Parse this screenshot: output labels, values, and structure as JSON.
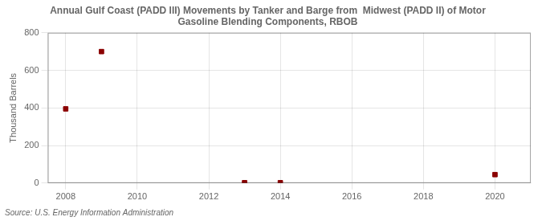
{
  "chart_data": {
    "type": "scatter",
    "title": "Annual Gulf Coast (PADD III) Movements by Tanker and Barge from  Midwest (PADD II) of Motor\nGasoline Blending Components, RBOB",
    "ylabel": "Thousand Barrels",
    "annotation": "Source: U.S. Energy Information Administration",
    "x": [
      2008,
      2009,
      2013,
      2014,
      2020
    ],
    "values": [
      395,
      700,
      2,
      2,
      45
    ],
    "color": "#8b0000",
    "marker": "square",
    "xlim": [
      2007.5,
      2021.0
    ],
    "xticks": [
      2008,
      2010,
      2012,
      2014,
      2016,
      2018,
      2020
    ],
    "ylim": [
      0,
      800
    ],
    "yticks": [
      0,
      200,
      400,
      600,
      800
    ],
    "grid": true
  }
}
